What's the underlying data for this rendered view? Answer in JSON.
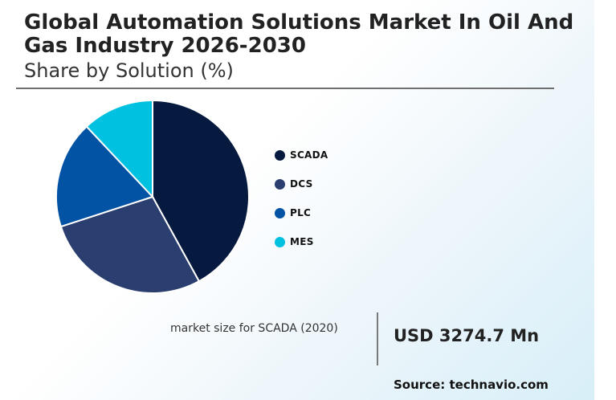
{
  "title": "Global Automation Solutions Market In Oil And Gas Industry 2026-2030",
  "subtitle": "Share by Solution (%)",
  "market_size": {
    "label": "market size for SCADA (2020)",
    "value": "USD 3274.7 Mn"
  },
  "source": "Source: technavio.com",
  "chart_data": {
    "type": "pie",
    "title": "Global Automation Solutions Market In Oil And Gas Industry 2026-2030",
    "subtitle": "Share by Solution (%)",
    "categories": [
      "SCADA",
      "DCS",
      "PLC",
      "MES"
    ],
    "values": [
      42,
      28,
      18,
      12
    ],
    "colors": [
      "#061a40",
      "#2a3f70",
      "#0353a4",
      "#00c1e0"
    ],
    "legend_position": "right"
  }
}
